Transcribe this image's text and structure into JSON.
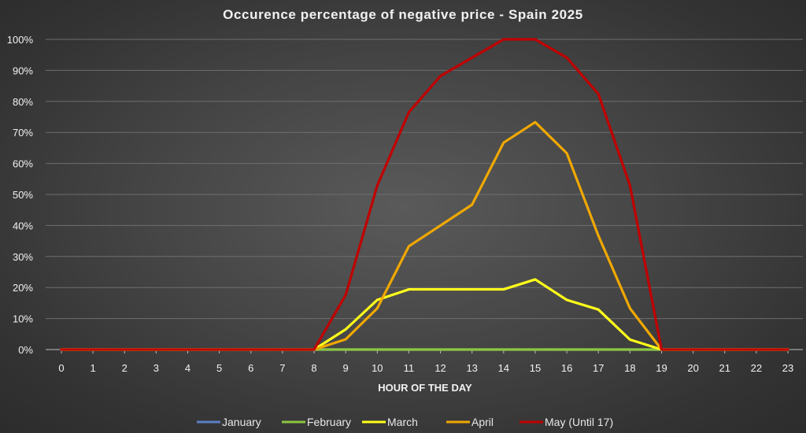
{
  "chart_data": {
    "type": "line",
    "title": "Occurence percentage of negative price - Spain 2025",
    "xlabel": "HOUR OF THE DAY",
    "ylabel": "",
    "x": [
      0,
      1,
      2,
      3,
      4,
      5,
      6,
      7,
      8,
      9,
      10,
      11,
      12,
      13,
      14,
      15,
      16,
      17,
      18,
      19,
      20,
      21,
      22,
      23
    ],
    "x_tick_labels": [
      "0",
      "1",
      "2",
      "3",
      "4",
      "5",
      "6",
      "7",
      "8",
      "9",
      "10",
      "11",
      "12",
      "13",
      "14",
      "15",
      "16",
      "17",
      "18",
      "19",
      "20",
      "21",
      "22",
      "23"
    ],
    "ylim": [
      0,
      100
    ],
    "y_tick_labels": [
      "0%",
      "10%",
      "20%",
      "30%",
      "40%",
      "50%",
      "60%",
      "70%",
      "80%",
      "90%",
      "100%"
    ],
    "y_ticks": [
      0,
      10,
      20,
      30,
      40,
      50,
      60,
      70,
      80,
      90,
      100
    ],
    "grid": true,
    "legend_position": "bottom",
    "series": [
      {
        "name": "January",
        "color": "#5b7fc4",
        "values": [
          0,
          0,
          0,
          0,
          0,
          0,
          0,
          0,
          0,
          0,
          0,
          0,
          0,
          0,
          0,
          0,
          0,
          0,
          0,
          0,
          0,
          0,
          0,
          0
        ]
      },
      {
        "name": "February",
        "color": "#8cc63f",
        "values": [
          0,
          0,
          0,
          0,
          0,
          0,
          0,
          0,
          0,
          0,
          0,
          0,
          0,
          0,
          0,
          0,
          0,
          0,
          0,
          0,
          0,
          0,
          0,
          0
        ]
      },
      {
        "name": "March",
        "color": "#ffff1a",
        "values": [
          0,
          0,
          0,
          0,
          0,
          0,
          0,
          0,
          0,
          6.5,
          16,
          19.4,
          19.4,
          19.4,
          19.4,
          22.6,
          16,
          12.9,
          3.2,
          0,
          0,
          0,
          0,
          0
        ]
      },
      {
        "name": "April",
        "color": "#f0a800",
        "values": [
          0,
          0,
          0,
          0,
          0,
          0,
          0,
          0,
          0,
          3.3,
          13.3,
          33.3,
          40,
          46.7,
          66.7,
          73.3,
          63.3,
          36.7,
          13.3,
          0,
          0,
          0,
          0,
          0
        ]
      },
      {
        "name": "May (Until 17)",
        "color": "#c00000",
        "values": [
          0,
          0,
          0,
          0,
          0,
          0,
          0,
          0,
          0,
          17.6,
          52.9,
          76.5,
          88.2,
          94.1,
          100,
          100,
          94.1,
          82.4,
          52.9,
          0,
          0,
          0,
          0,
          0
        ]
      }
    ]
  }
}
